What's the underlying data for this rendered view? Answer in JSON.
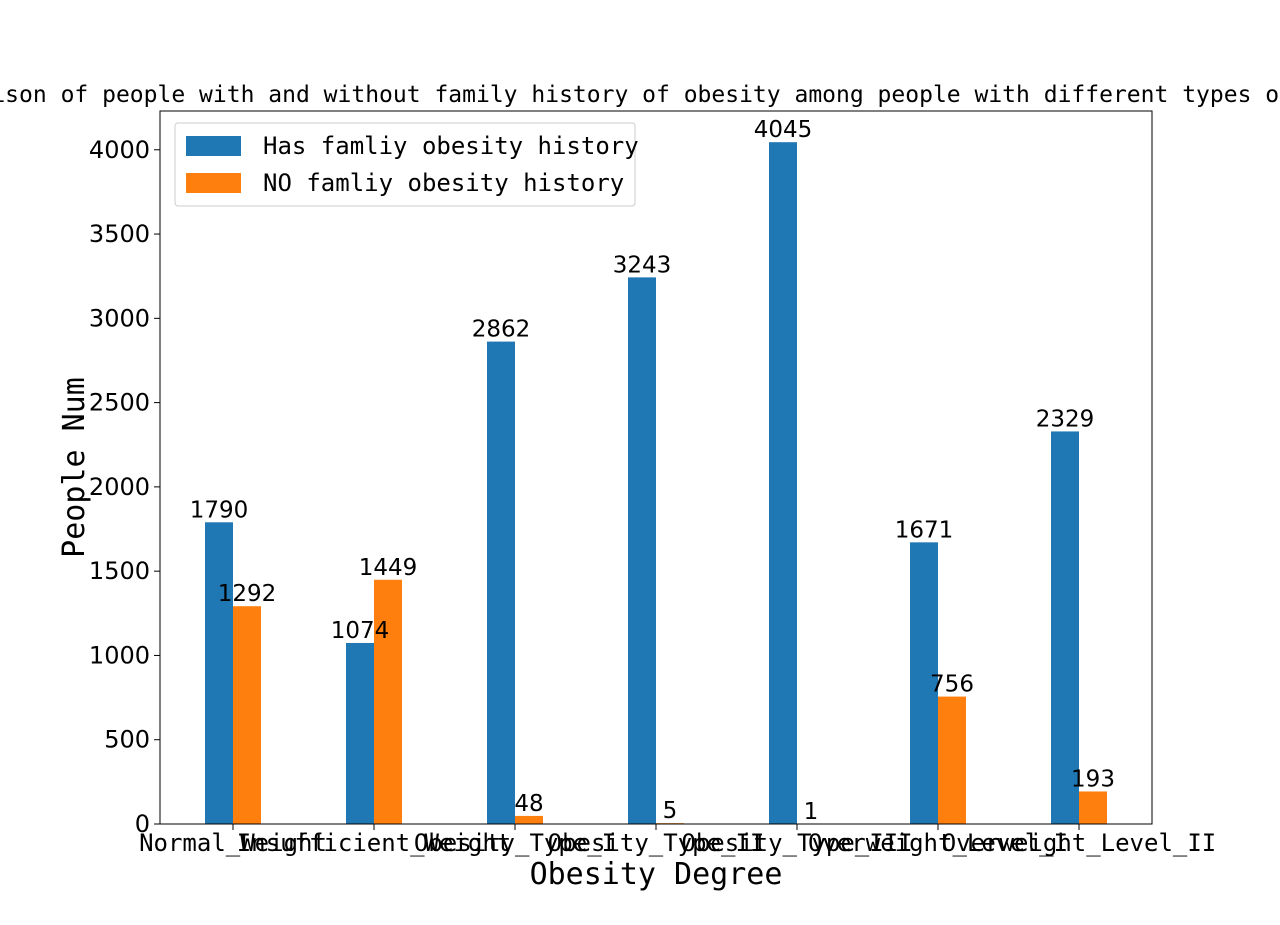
{
  "chart_data": {
    "type": "bar",
    "title": "Comparison of people with and without family history of obesity among people with different types of obesity",
    "xlabel": "Obesity Degree",
    "ylabel": "People Num",
    "ylim": [
      0,
      4230
    ],
    "yticks": [
      0,
      500,
      1000,
      1500,
      2000,
      2500,
      3000,
      3500,
      4000
    ],
    "categories": [
      "Normal_Weight",
      "Insufficient_Weight",
      "Obesity_Type_I",
      "Obesity_Type_II",
      "Obesity_Type_III",
      "Overweight_Level_I",
      "Overweight_Level_II"
    ],
    "series": [
      {
        "name": "Has famliy obesity history",
        "color": "#1f77b4",
        "values": [
          1790,
          1074,
          2862,
          3243,
          4045,
          1671,
          2329
        ]
      },
      {
        "name": "NO famliy obesity history",
        "color": "#ff7f0e",
        "values": [
          1292,
          1449,
          48,
          5,
          1,
          756,
          193
        ]
      }
    ],
    "legend": "top-left",
    "grid": false
  }
}
